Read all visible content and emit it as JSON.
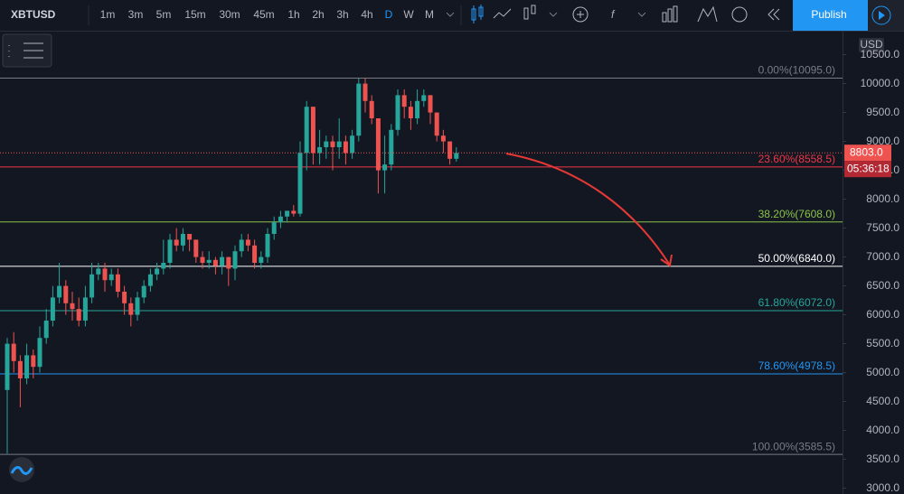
{
  "toolbar": {
    "symbol": "XBTUSD",
    "intervals": [
      "1m",
      "3m",
      "5m",
      "15m",
      "30m",
      "45m",
      "1h",
      "2h",
      "3h",
      "4h",
      "D",
      "W",
      "M"
    ],
    "publish": "Publish"
  },
  "chart_data": {
    "type": "candlestick",
    "currency": "USD",
    "up_color": "#26a69a",
    "down_color": "#ef5350",
    "ylim": [
      2900,
      10900
    ],
    "yticks": [
      {
        "value": 10500,
        "label": "10500.0"
      },
      {
        "value": 10000,
        "label": "10000.0"
      },
      {
        "value": 9500,
        "label": "9500.0"
      },
      {
        "value": 9000,
        "label": "9000.0"
      },
      {
        "value": 8500,
        "label": "8500.0"
      },
      {
        "value": 8000,
        "label": "8000.0"
      },
      {
        "value": 7500,
        "label": "7500.0"
      },
      {
        "value": 7000,
        "label": "7000.0"
      },
      {
        "value": 6500,
        "label": "6500.0"
      },
      {
        "value": 6000,
        "label": "6000.0"
      },
      {
        "value": 5500,
        "label": "5500.0"
      },
      {
        "value": 5000,
        "label": "5000.0"
      },
      {
        "value": 4500,
        "label": "4500.0"
      },
      {
        "value": 4000,
        "label": "4000.0"
      },
      {
        "value": 3500,
        "label": "3500.0"
      },
      {
        "value": 3000,
        "label": "3000.0"
      }
    ],
    "open": [
      4700,
      5500,
      5200,
      4900,
      5300,
      5100,
      5600,
      5900,
      6300,
      6500,
      6200,
      6100,
      5900,
      6300,
      6700,
      6800,
      6600,
      6700,
      6400,
      6200,
      6000,
      6300,
      6500,
      6700,
      6800,
      6900,
      7300,
      7200,
      7400,
      7300,
      7000,
      6900,
      6950,
      6850,
      7000,
      6800,
      7100,
      7300,
      7200,
      6900,
      7000,
      7400,
      7600,
      7700,
      7800,
      7750,
      8800,
      9600,
      8800,
      8900,
      9000,
      8900,
      9000,
      8800,
      9100,
      10000,
      9700,
      9400,
      8500,
      8600,
      9200,
      9800,
      9600,
      9400,
      9700,
      9800,
      9500,
      9100,
      9000,
      8700
    ],
    "high": [
      5600,
      5700,
      5300,
      5500,
      5400,
      5800,
      6100,
      6500,
      6900,
      6600,
      6400,
      6300,
      6500,
      6900,
      6900,
      6900,
      6800,
      6800,
      6500,
      6300,
      6400,
      6600,
      6800,
      6900,
      7300,
      7400,
      7500,
      7500,
      7400,
      7300,
      7100,
      7100,
      7000,
      7100,
      7000,
      7200,
      7400,
      7400,
      7300,
      7100,
      7500,
      7700,
      7800,
      7800,
      7900,
      9000,
      9700,
      9600,
      9200,
      9100,
      9100,
      9400,
      9100,
      9200,
      10100,
      10100,
      9800,
      9400,
      9100,
      9300,
      9900,
      9900,
      9700,
      9900,
      9900,
      9800,
      9500,
      9200,
      9000,
      8900
    ],
    "low": [
      3600,
      5000,
      4400,
      4800,
      4900,
      5000,
      5500,
      5800,
      6200,
      6000,
      5900,
      5800,
      5800,
      6200,
      6600,
      6400,
      6500,
      6300,
      6000,
      5800,
      5900,
      6200,
      6400,
      6600,
      6700,
      6800,
      7100,
      7100,
      7100,
      6900,
      6800,
      6800,
      6700,
      6700,
      6500,
      6600,
      7000,
      7100,
      6800,
      6800,
      6900,
      7300,
      7500,
      7600,
      7700,
      7700,
      8500,
      8600,
      8600,
      8700,
      8500,
      8700,
      8600,
      8700,
      9000,
      9500,
      9300,
      8100,
      8100,
      8500,
      9100,
      9400,
      9200,
      9300,
      9600,
      9300,
      9000,
      8800,
      8600,
      8650
    ],
    "close": [
      5500,
      5200,
      4900,
      5300,
      5100,
      5600,
      5900,
      6300,
      6500,
      6200,
      6100,
      5900,
      6300,
      6700,
      6800,
      6600,
      6700,
      6400,
      6200,
      6000,
      6300,
      6500,
      6700,
      6800,
      6900,
      7300,
      7200,
      7400,
      7300,
      7000,
      6900,
      6950,
      6850,
      7000,
      6800,
      7100,
      7300,
      7200,
      6900,
      7000,
      7400,
      7600,
      7700,
      7800,
      7750,
      8800,
      9600,
      8800,
      8900,
      9000,
      8900,
      9000,
      8800,
      9100,
      10000,
      9700,
      9400,
      8500,
      8600,
      9200,
      9800,
      9600,
      9400,
      9700,
      9800,
      9500,
      9100,
      9000,
      8700,
      8800
    ],
    "fib_levels": [
      {
        "value": 10095,
        "label": "0.00%(10095.0)",
        "color": "#787b86"
      },
      {
        "value": 8558.5,
        "label": "23.60%(8558.5)",
        "color": "#f23645"
      },
      {
        "value": 7608,
        "label": "38.20%(7608.0)",
        "color": "#8bc34a"
      },
      {
        "value": 6840,
        "label": "50.00%(6840.0)",
        "color": "#ffffff"
      },
      {
        "value": 6072,
        "label": "61.80%(6072.0)",
        "color": "#26a69a"
      },
      {
        "value": 4978.5,
        "label": "78.60%(4978.5)",
        "color": "#2196f3"
      },
      {
        "value": 3585.5,
        "label": "100.00%(3585.5)",
        "color": "#787b86"
      }
    ],
    "last_price": {
      "value": 8803,
      "label": "8803.0"
    },
    "countdown": "05:36:18"
  }
}
